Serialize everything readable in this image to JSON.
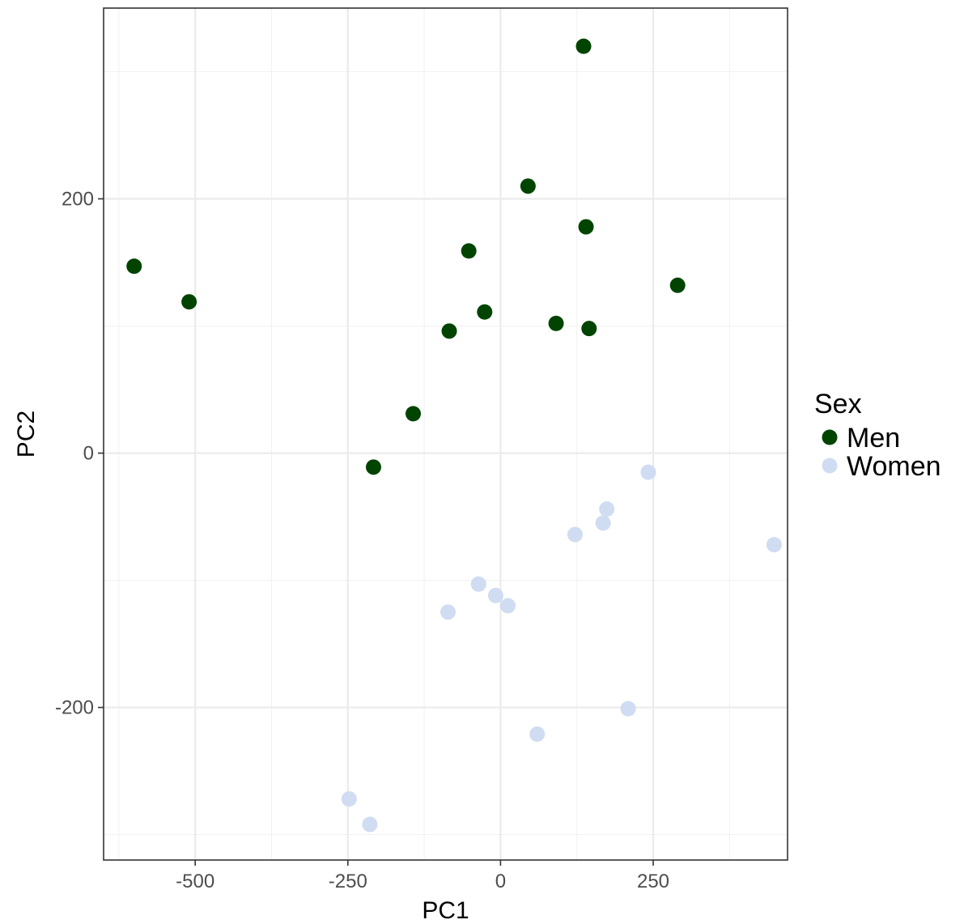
{
  "chart_data": {
    "type": "scatter",
    "title": "",
    "xlabel": "PC1",
    "ylabel": "PC2",
    "xlim": [
      -650,
      470
    ],
    "ylim": [
      -320,
      350
    ],
    "x_ticks": [
      -500,
      -250,
      0,
      250
    ],
    "y_ticks": [
      -200,
      0,
      200
    ],
    "grid": true,
    "legend": {
      "title": "Sex",
      "position": "right"
    },
    "series": [
      {
        "name": "Men",
        "color": "#004400",
        "points": [
          {
            "x": 136,
            "y": 320
          },
          {
            "x": 45,
            "y": 210
          },
          {
            "x": 140,
            "y": 178
          },
          {
            "x": -52,
            "y": 159
          },
          {
            "x": -600,
            "y": 147
          },
          {
            "x": 290,
            "y": 132
          },
          {
            "x": -510,
            "y": 119
          },
          {
            "x": -26,
            "y": 111
          },
          {
            "x": 91,
            "y": 102
          },
          {
            "x": 145,
            "y": 98
          },
          {
            "x": -84,
            "y": 96
          },
          {
            "x": -143,
            "y": 31
          },
          {
            "x": -208,
            "y": -11
          }
        ]
      },
      {
        "name": "Women",
        "color": "#cfdcf2",
        "points": [
          {
            "x": 242,
            "y": -15
          },
          {
            "x": 174,
            "y": -44
          },
          {
            "x": 168,
            "y": -55
          },
          {
            "x": 122,
            "y": -64
          },
          {
            "x": 448,
            "y": -72
          },
          {
            "x": -36,
            "y": -103
          },
          {
            "x": -8,
            "y": -112
          },
          {
            "x": 12,
            "y": -120
          },
          {
            "x": -86,
            "y": -125
          },
          {
            "x": 209,
            "y": -201
          },
          {
            "x": 60,
            "y": -221
          },
          {
            "x": -248,
            "y": -272
          },
          {
            "x": -214,
            "y": -292
          }
        ]
      }
    ]
  }
}
